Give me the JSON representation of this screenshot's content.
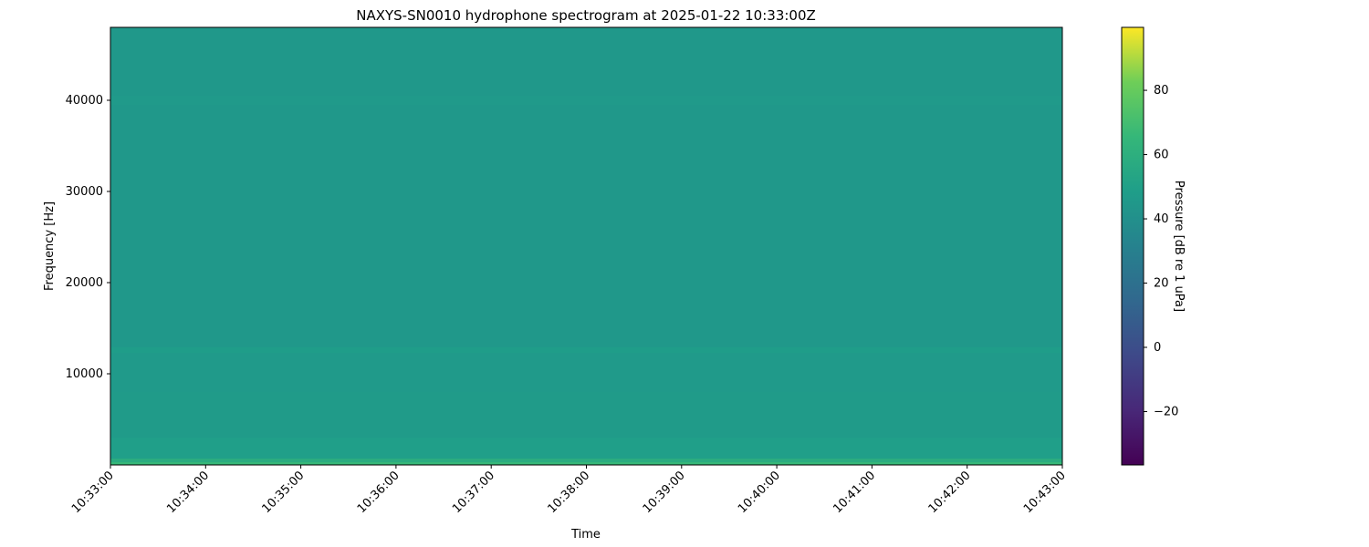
{
  "chart_data": {
    "type": "heatmap",
    "title": "NAXYS-SN0010 hydrophone spectrogram at 2025-01-22 10:33:00Z",
    "xlabel": "Time",
    "ylabel": "Frequency [Hz]",
    "colorbar_label": "Pressure [dB re 1 uPa]",
    "colormap": "viridis",
    "clim": [
      -36.6,
      99.6
    ],
    "ylim": [
      0,
      48000
    ],
    "x_ticks": [
      "10:33:00",
      "10:34:00",
      "10:35:00",
      "10:36:00",
      "10:37:00",
      "10:38:00",
      "10:39:00",
      "10:40:00",
      "10:41:00",
      "10:42:00",
      "10:43:00"
    ],
    "y_ticks": [
      10000,
      20000,
      30000,
      40000
    ],
    "colorbar_ticks": [
      -20,
      0,
      20,
      40,
      60,
      80
    ],
    "bands": [
      {
        "f0": 0,
        "f1": 300,
        "db": 66
      },
      {
        "f0": 300,
        "f1": 700,
        "db": 58
      },
      {
        "f0": 700,
        "f1": 3000,
        "db": 49
      },
      {
        "f0": 3000,
        "f1": 8000,
        "db": 47
      },
      {
        "f0": 8000,
        "f1": 12300,
        "db": 46
      },
      {
        "f0": 12300,
        "f1": 12900,
        "db": 48
      },
      {
        "f0": 12900,
        "f1": 39500,
        "db": 45
      },
      {
        "f0": 39500,
        "f1": 40500,
        "db": 46
      },
      {
        "f0": 40500,
        "f1": 48000,
        "db": 45
      }
    ]
  }
}
